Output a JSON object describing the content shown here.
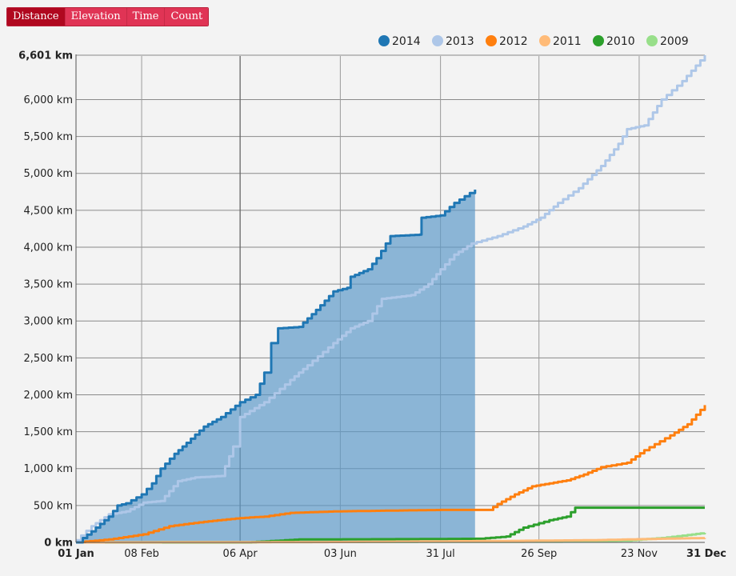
{
  "tabs": [
    {
      "label": "Distance",
      "active": true
    },
    {
      "label": "Elevation",
      "active": false
    },
    {
      "label": "Time",
      "active": false
    },
    {
      "label": "Count",
      "active": false
    }
  ],
  "chart_data": {
    "type": "line",
    "unit": "km",
    "ylim": [
      0,
      6601
    ],
    "y_ticks": [
      {
        "value": 0,
        "label": "0 km",
        "bold": true
      },
      {
        "value": 500,
        "label": "500 km"
      },
      {
        "value": 1000,
        "label": "1,000 km"
      },
      {
        "value": 1500,
        "label": "1,500 km"
      },
      {
        "value": 2000,
        "label": "2,000 km"
      },
      {
        "value": 2500,
        "label": "2,500 km"
      },
      {
        "value": 3000,
        "label": "3,000 km"
      },
      {
        "value": 3500,
        "label": "3,500 km"
      },
      {
        "value": 4000,
        "label": "4,000 km"
      },
      {
        "value": 4500,
        "label": "4,500 km"
      },
      {
        "value": 5000,
        "label": "5,000 km"
      },
      {
        "value": 5500,
        "label": "5,500 km"
      },
      {
        "value": 6000,
        "label": "6,000 km"
      },
      {
        "value": 6601,
        "label": "6,601 km",
        "bold": true
      }
    ],
    "x_ticks": [
      {
        "day": 1,
        "label": "01 Jan",
        "bold": true
      },
      {
        "day": 39,
        "label": "08 Feb"
      },
      {
        "day": 96,
        "label": "06 Apr"
      },
      {
        "day": 154,
        "label": "03 Jun"
      },
      {
        "day": 212,
        "label": "31 Jul"
      },
      {
        "day": 269,
        "label": "26 Sep"
      },
      {
        "day": 327,
        "label": "23 Nov"
      },
      {
        "day": 365,
        "label": "31 Dec",
        "bold": true
      }
    ],
    "x_gridlines": [
      39,
      96,
      154,
      212,
      269,
      327
    ],
    "highlight_gridline": 96,
    "legend_position": "top-right",
    "series": [
      {
        "name": "2014",
        "color": "#1f77b4",
        "filled": true,
        "points": [
          [
            1,
            0
          ],
          [
            5,
            60
          ],
          [
            10,
            150
          ],
          [
            15,
            250
          ],
          [
            20,
            350
          ],
          [
            25,
            500
          ],
          [
            30,
            530
          ],
          [
            39,
            650
          ],
          [
            45,
            800
          ],
          [
            50,
            1000
          ],
          [
            58,
            1200
          ],
          [
            65,
            1350
          ],
          [
            75,
            1570
          ],
          [
            85,
            1700
          ],
          [
            96,
            1900
          ],
          [
            105,
            2000
          ],
          [
            110,
            2300
          ],
          [
            114,
            2700
          ],
          [
            118,
            2900
          ],
          [
            130,
            2920
          ],
          [
            140,
            3150
          ],
          [
            150,
            3400
          ],
          [
            158,
            3450
          ],
          [
            160,
            3600
          ],
          [
            170,
            3700
          ],
          [
            175,
            3850
          ],
          [
            183,
            4150
          ],
          [
            200,
            4170
          ],
          [
            201,
            4400
          ],
          [
            212,
            4430
          ],
          [
            220,
            4600
          ],
          [
            232,
            4780
          ]
        ]
      },
      {
        "name": "2013",
        "color": "#aec7e8",
        "points": [
          [
            1,
            30
          ],
          [
            10,
            220
          ],
          [
            20,
            380
          ],
          [
            30,
            420
          ],
          [
            40,
            540
          ],
          [
            50,
            560
          ],
          [
            60,
            830
          ],
          [
            70,
            880
          ],
          [
            85,
            900
          ],
          [
            92,
            1300
          ],
          [
            96,
            1700
          ],
          [
            110,
            1900
          ],
          [
            125,
            2200
          ],
          [
            135,
            2400
          ],
          [
            150,
            2700
          ],
          [
            160,
            2900
          ],
          [
            170,
            3000
          ],
          [
            178,
            3300
          ],
          [
            195,
            3350
          ],
          [
            205,
            3500
          ],
          [
            212,
            3700
          ],
          [
            220,
            3900
          ],
          [
            230,
            4050
          ],
          [
            245,
            4150
          ],
          [
            260,
            4280
          ],
          [
            270,
            4400
          ],
          [
            280,
            4600
          ],
          [
            292,
            4800
          ],
          [
            305,
            5100
          ],
          [
            315,
            5400
          ],
          [
            320,
            5600
          ],
          [
            330,
            5650
          ],
          [
            340,
            6000
          ],
          [
            352,
            6250
          ],
          [
            365,
            6601
          ]
        ]
      },
      {
        "name": "2012",
        "color": "#ff7f0e",
        "points": [
          [
            1,
            0
          ],
          [
            20,
            40
          ],
          [
            40,
            110
          ],
          [
            55,
            220
          ],
          [
            75,
            280
          ],
          [
            96,
            330
          ],
          [
            110,
            350
          ],
          [
            125,
            400
          ],
          [
            150,
            420
          ],
          [
            180,
            430
          ],
          [
            212,
            440
          ],
          [
            240,
            440
          ],
          [
            245,
            520
          ],
          [
            255,
            650
          ],
          [
            265,
            760
          ],
          [
            275,
            800
          ],
          [
            285,
            840
          ],
          [
            295,
            920
          ],
          [
            305,
            1020
          ],
          [
            320,
            1080
          ],
          [
            330,
            1250
          ],
          [
            345,
            1450
          ],
          [
            355,
            1600
          ],
          [
            365,
            1860
          ]
        ]
      },
      {
        "name": "2011",
        "color": "#ffbb78",
        "points": [
          [
            1,
            0
          ],
          [
            150,
            5
          ],
          [
            250,
            20
          ],
          [
            300,
            30
          ],
          [
            340,
            50
          ],
          [
            365,
            60
          ]
        ]
      },
      {
        "name": "2010",
        "color": "#2ca02c",
        "points": [
          [
            1,
            0
          ],
          [
            100,
            0
          ],
          [
            130,
            40
          ],
          [
            200,
            45
          ],
          [
            235,
            50
          ],
          [
            250,
            80
          ],
          [
            260,
            200
          ],
          [
            275,
            300
          ],
          [
            285,
            350
          ],
          [
            290,
            470
          ],
          [
            365,
            470
          ]
        ]
      },
      {
        "name": "2009",
        "color": "#98df8a",
        "points": [
          [
            1,
            0
          ],
          [
            280,
            10
          ],
          [
            320,
            25
          ],
          [
            340,
            60
          ],
          [
            355,
            100
          ],
          [
            365,
            130
          ]
        ]
      }
    ]
  }
}
